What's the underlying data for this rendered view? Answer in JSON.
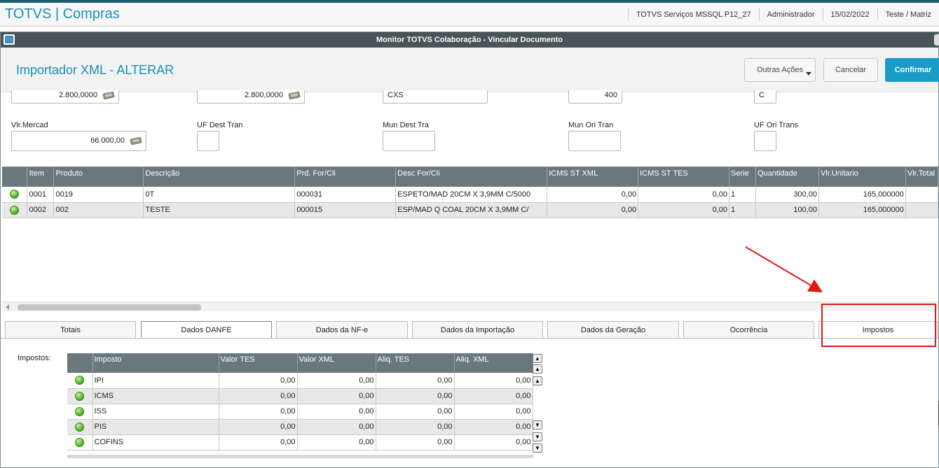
{
  "app": {
    "title": "TOTVS | Compras",
    "info": [
      "TOTVS Serviços MSSQL P12_27",
      "Administrador",
      "15/02/2022",
      "Teste / Matriz"
    ]
  },
  "window": {
    "title": "Monitor TOTVS Colaboração - Vincular Documento"
  },
  "header": {
    "title": "Importador XML - ALTERAR",
    "outras_acoes": "Outras Ações",
    "cancelar": "Cancelar",
    "confirmar": "Confirmar"
  },
  "form": {
    "top_fields": [
      "2.800,0000",
      "2.800,0000",
      "CXS",
      "400",
      "C"
    ],
    "vlr_mercad_label": "Vlr.Mercad",
    "vlr_mercad_value": "66.000,00",
    "uf_dest_tran_label": "UF Dest Tran",
    "mun_dest_tra_label": "Mun Dest Tra",
    "mun_ori_tran_label": "Mun Ori Tran",
    "uf_ori_trans_label": "UF Ori Trans"
  },
  "items_grid": {
    "columns": [
      "",
      "Item",
      "Produto",
      "Descrição",
      "Prd. For/Cli",
      "Desc For/Cli",
      "ICMS ST XML",
      "ICMS ST TES",
      "Serie",
      "Quantidade",
      "Vlr.Unitario",
      "Vlr.Total"
    ],
    "rows": [
      [
        "0001",
        "0019",
        "0T",
        "000031",
        "ESPETO/MAD 20CM X 3,9MM C/5000",
        "0,00",
        "0,00",
        "1",
        "300,00",
        "165,000000",
        ""
      ],
      [
        "0002",
        "002",
        "TESTE",
        "000015",
        "ESP/MAD Q COAL 20CM X 3,9MM C/",
        "0,00",
        "0,00",
        "1",
        "100,00",
        "165,000000",
        ""
      ]
    ]
  },
  "tabs": [
    "Totais",
    "Dados DANFE",
    "Dados da NF-e",
    "Dados da Importação",
    "Dados da Geração",
    "Ocorrência",
    "Impostos"
  ],
  "impostos": {
    "label": "Impostos:",
    "columns": [
      "",
      "Imposto",
      "Valor TES",
      "Valor XML",
      "Aliq. TES",
      "Aliq. XML"
    ],
    "rows": [
      [
        "IPI",
        "0,00",
        "0,00",
        "0,00",
        "0,00"
      ],
      [
        "ICMS",
        "0,00",
        "0,00",
        "0,00",
        "0,00"
      ],
      [
        "ISS",
        "0,00",
        "0,00",
        "0,00",
        "0,00"
      ],
      [
        "PIS",
        "0,00",
        "0,00",
        "0,00",
        "0,00"
      ],
      [
        "COFINS",
        "0,00",
        "0,00",
        "0,00",
        "0,00"
      ]
    ]
  },
  "colors": {
    "brand": "#1a8fb5",
    "confirm": "#1a9ac7",
    "highlight": "#e01818",
    "status_ok": "#4aa620"
  }
}
